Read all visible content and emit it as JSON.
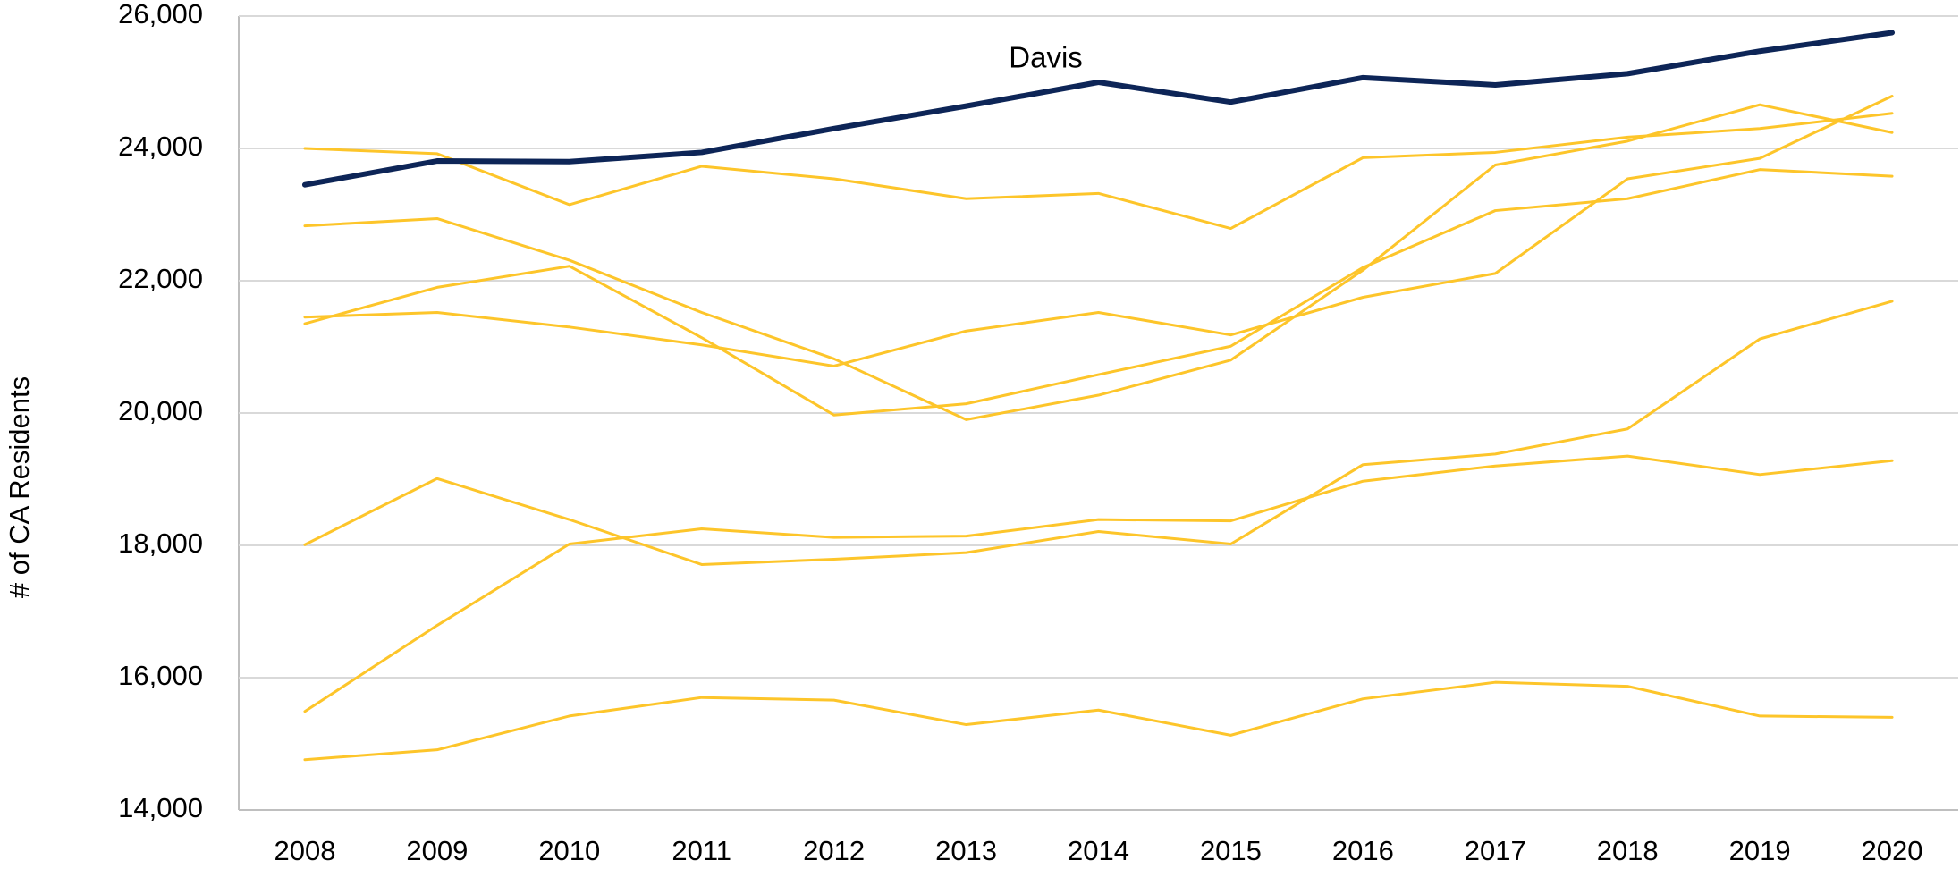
{
  "chart_data": {
    "type": "line",
    "y_label": "# of CA Residents",
    "categories": [
      "2008",
      "2009",
      "2010",
      "2011",
      "2012",
      "2013",
      "2014",
      "2015",
      "2016",
      "2017",
      "2018",
      "2019",
      "2020"
    ],
    "series": [
      {
        "name": "Davis",
        "color": "#0d2557",
        "values": [
          23450,
          23810,
          23800,
          23940,
          24300,
          24640,
          25000,
          24700,
          25070,
          24960,
          25130,
          25470,
          25750
        ]
      },
      {
        "color": "#fdc52a",
        "values": [
          24000,
          23920,
          23150,
          23730,
          23540,
          23240,
          23320,
          22790,
          23860,
          23940,
          24170,
          24300,
          24530
        ]
      },
      {
        "color": "#fdc52a",
        "values": [
          22830,
          22940,
          22310,
          21520,
          20820,
          19900,
          20270,
          20800,
          22160,
          23750,
          24110,
          24660,
          24240
        ]
      },
      {
        "color": "#fdc52a",
        "values": [
          21350,
          21900,
          22220,
          21140,
          19970,
          20140,
          20580,
          21010,
          22200,
          23060,
          23240,
          23680,
          23580
        ]
      },
      {
        "color": "#fdc52a",
        "values": [
          21450,
          21520,
          21300,
          21030,
          20710,
          21240,
          21520,
          21180,
          21750,
          22110,
          23540,
          23850,
          24790
        ]
      },
      {
        "color": "#fdc52a",
        "values": [
          18010,
          19010,
          18390,
          17710,
          17790,
          17890,
          18210,
          18020,
          19220,
          19380,
          19760,
          21120,
          21690
        ]
      },
      {
        "color": "#fdc52a",
        "values": [
          15490,
          16790,
          18020,
          18250,
          18120,
          18140,
          18390,
          18370,
          18970,
          19200,
          19350,
          19070,
          19280
        ]
      },
      {
        "color": "#fdc52a",
        "values": [
          14760,
          14910,
          15420,
          15700,
          15660,
          15290,
          15510,
          15130,
          15680,
          15930,
          15870,
          15420,
          15400
        ]
      }
    ],
    "ylim": [
      14000,
      26000
    ],
    "yticks": [
      {
        "value": 14000,
        "label": "14,000"
      },
      {
        "value": 16000,
        "label": "16,000"
      },
      {
        "value": 18000,
        "label": "18,000"
      },
      {
        "value": 20000,
        "label": "20,000"
      },
      {
        "value": 22000,
        "label": "22,000"
      },
      {
        "value": 24000,
        "label": "24,000"
      },
      {
        "value": 26000,
        "label": "26,000"
      }
    ],
    "grid": true
  }
}
